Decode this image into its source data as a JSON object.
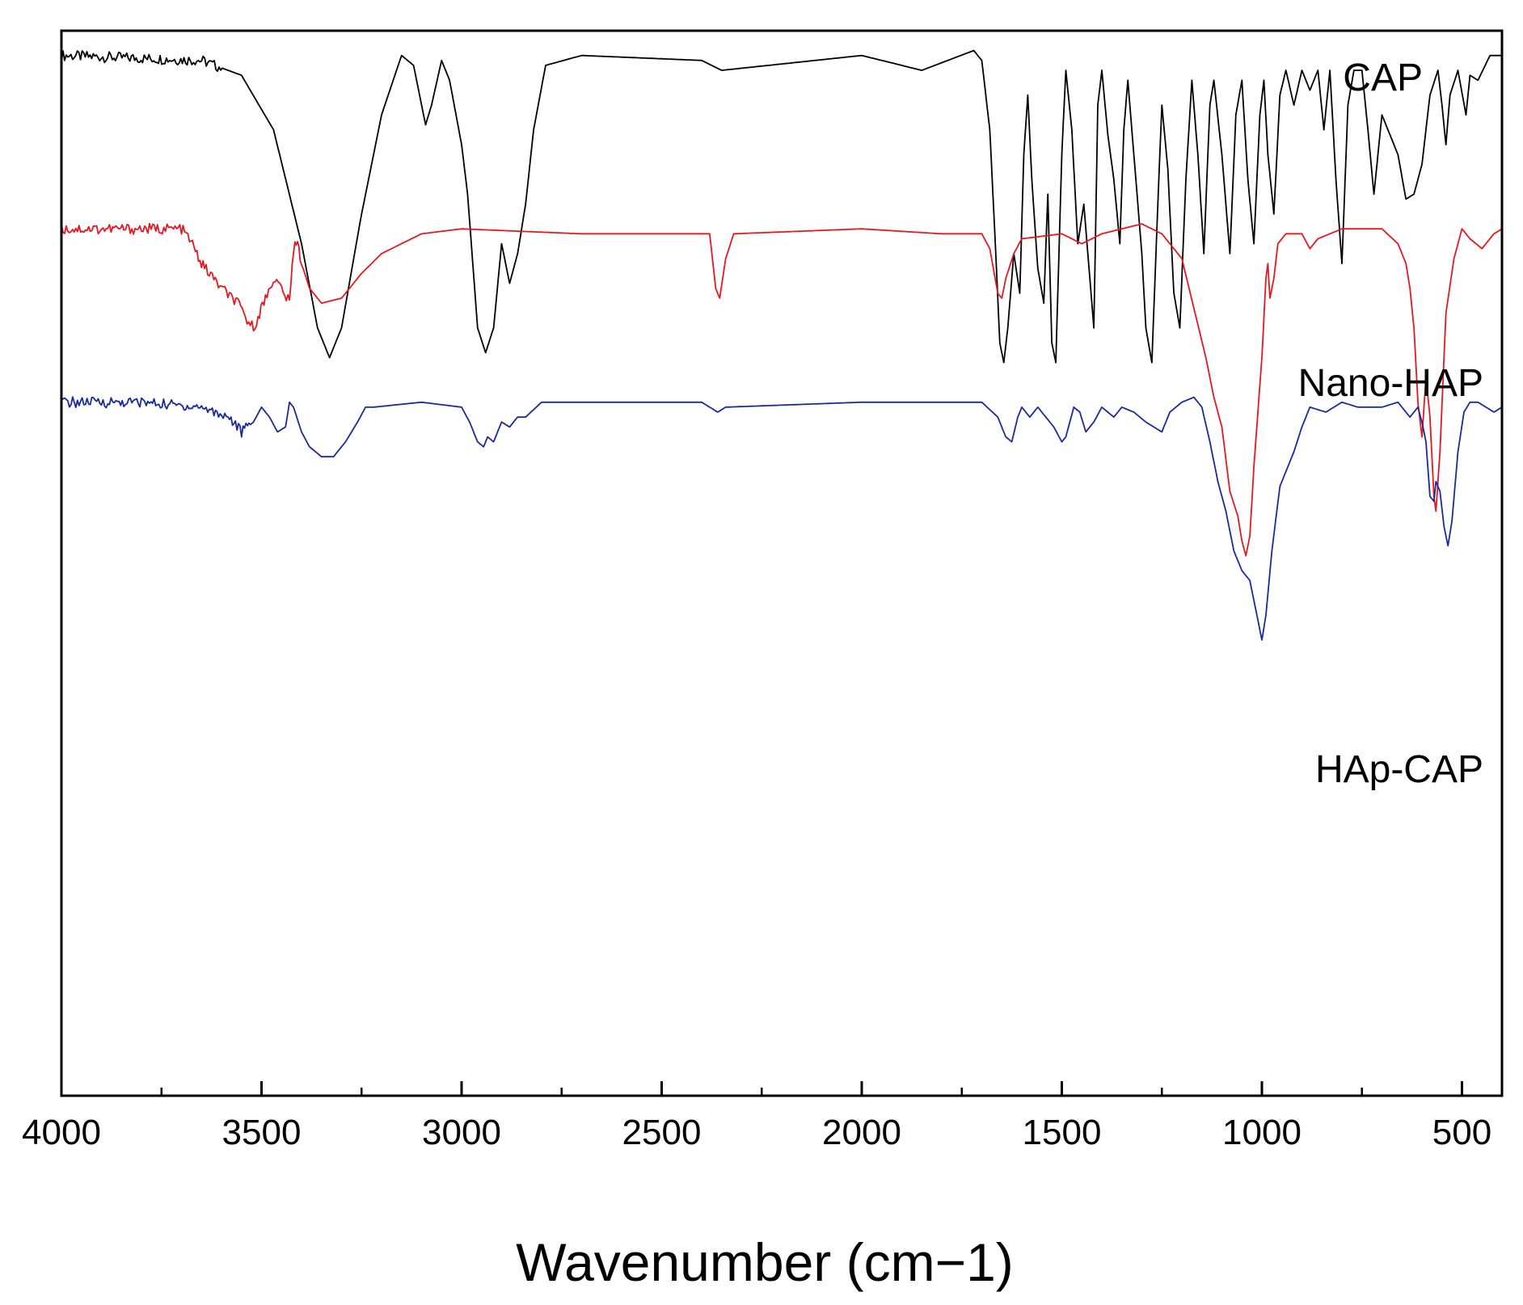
{
  "chart_data": {
    "type": "line",
    "title": "",
    "xlabel": "Wavenumber (cm−1)",
    "ylabel": "",
    "xlim": [
      4000,
      400
    ],
    "x_reversed": true,
    "y_axis_visible_ticks": false,
    "grid": false,
    "legend": "inline labels beside each trace",
    "xticks": [
      {
        "value": 4000,
        "label": "4000"
      },
      {
        "value": 3500,
        "label": "3500"
      },
      {
        "value": 3000,
        "label": "3000"
      },
      {
        "value": 2500,
        "label": "2500"
      },
      {
        "value": 2000,
        "label": "2000"
      },
      {
        "value": 1500,
        "label": "1500"
      },
      {
        "value": 1000,
        "label": "1000"
      },
      {
        "value": 500,
        "label": "500"
      }
    ],
    "minor_xticks": [
      3750,
      3250,
      2750,
      2250,
      1750,
      1250,
      750
    ],
    "series": [
      {
        "name": "CAP",
        "color": "#000000",
        "offset": 70,
        "noise_regions": [
          [
            4000,
            3600
          ]
        ],
        "points": [
          [
            4000,
            100
          ],
          [
            3650,
            99
          ],
          [
            3550,
            96
          ],
          [
            3470,
            85
          ],
          [
            3400,
            62
          ],
          [
            3360,
            45
          ],
          [
            3330,
            39
          ],
          [
            3300,
            45
          ],
          [
            3250,
            68
          ],
          [
            3200,
            88
          ],
          [
            3150,
            100
          ],
          [
            3120,
            98
          ],
          [
            3090,
            86
          ],
          [
            3075,
            90
          ],
          [
            3050,
            99
          ],
          [
            3030,
            95
          ],
          [
            3000,
            82
          ],
          [
            2985,
            72
          ],
          [
            2960,
            45
          ],
          [
            2940,
            40
          ],
          [
            2920,
            45
          ],
          [
            2900,
            62
          ],
          [
            2880,
            54
          ],
          [
            2860,
            60
          ],
          [
            2840,
            70
          ],
          [
            2820,
            85
          ],
          [
            2790,
            98
          ],
          [
            2700,
            100
          ],
          [
            2400,
            99
          ],
          [
            2350,
            97
          ],
          [
            2000,
            100
          ],
          [
            1850,
            97
          ],
          [
            1720,
            101
          ],
          [
            1700,
            99
          ],
          [
            1680,
            85
          ],
          [
            1665,
            60
          ],
          [
            1655,
            42
          ],
          [
            1645,
            38
          ],
          [
            1635,
            45
          ],
          [
            1620,
            60
          ],
          [
            1605,
            52
          ],
          [
            1595,
            80
          ],
          [
            1585,
            92
          ],
          [
            1575,
            75
          ],
          [
            1560,
            57
          ],
          [
            1545,
            50
          ],
          [
            1535,
            72
          ],
          [
            1525,
            42
          ],
          [
            1515,
            38
          ],
          [
            1500,
            80
          ],
          [
            1490,
            97
          ],
          [
            1475,
            85
          ],
          [
            1460,
            62
          ],
          [
            1445,
            70
          ],
          [
            1430,
            55
          ],
          [
            1420,
            45
          ],
          [
            1410,
            90
          ],
          [
            1400,
            97
          ],
          [
            1385,
            84
          ],
          [
            1370,
            75
          ],
          [
            1355,
            62
          ],
          [
            1345,
            85
          ],
          [
            1335,
            95
          ],
          [
            1320,
            80
          ],
          [
            1300,
            60
          ],
          [
            1290,
            45
          ],
          [
            1275,
            38
          ],
          [
            1260,
            70
          ],
          [
            1250,
            90
          ],
          [
            1235,
            77
          ],
          [
            1220,
            52
          ],
          [
            1205,
            45
          ],
          [
            1190,
            75
          ],
          [
            1175,
            95
          ],
          [
            1160,
            80
          ],
          [
            1145,
            60
          ],
          [
            1130,
            90
          ],
          [
            1120,
            95
          ],
          [
            1100,
            80
          ],
          [
            1080,
            60
          ],
          [
            1065,
            88
          ],
          [
            1050,
            95
          ],
          [
            1035,
            75
          ],
          [
            1020,
            62
          ],
          [
            1005,
            88
          ],
          [
            995,
            95
          ],
          [
            985,
            80
          ],
          [
            970,
            68
          ],
          [
            955,
            92
          ],
          [
            940,
            97
          ],
          [
            920,
            90
          ],
          [
            900,
            97
          ],
          [
            880,
            93
          ],
          [
            860,
            97
          ],
          [
            845,
            85
          ],
          [
            830,
            97
          ],
          [
            815,
            75
          ],
          [
            800,
            58
          ],
          [
            785,
            90
          ],
          [
            770,
            97
          ],
          [
            750,
            97
          ],
          [
            735,
            85
          ],
          [
            720,
            72
          ],
          [
            700,
            88
          ],
          [
            680,
            84
          ],
          [
            660,
            80
          ],
          [
            640,
            71
          ],
          [
            620,
            72
          ],
          [
            600,
            78
          ],
          [
            580,
            92
          ],
          [
            560,
            97
          ],
          [
            550,
            90
          ],
          [
            540,
            82
          ],
          [
            530,
            92
          ],
          [
            510,
            97
          ],
          [
            490,
            88
          ],
          [
            480,
            96
          ],
          [
            460,
            95
          ],
          [
            430,
            100
          ],
          [
            400,
            100
          ]
        ]
      },
      {
        "name": "Nano-HAP",
        "color": "#e5171f",
        "offset": 35,
        "noise_regions": [
          [
            4000,
            3400
          ]
        ],
        "points": [
          [
            4000,
            100
          ],
          [
            3900,
            100
          ],
          [
            3700,
            100
          ],
          [
            3680,
            98
          ],
          [
            3650,
            93
          ],
          [
            3600,
            88
          ],
          [
            3560,
            85
          ],
          [
            3540,
            82
          ],
          [
            3520,
            80
          ],
          [
            3490,
            86
          ],
          [
            3470,
            90
          ],
          [
            3450,
            88
          ],
          [
            3430,
            85
          ],
          [
            3420,
            96
          ],
          [
            3410,
            98
          ],
          [
            3400,
            93
          ],
          [
            3380,
            88
          ],
          [
            3350,
            85
          ],
          [
            3300,
            86
          ],
          [
            3250,
            91
          ],
          [
            3200,
            95
          ],
          [
            3100,
            99
          ],
          [
            3000,
            100
          ],
          [
            2700,
            99
          ],
          [
            2380,
            99
          ],
          [
            2365,
            88
          ],
          [
            2355,
            86
          ],
          [
            2340,
            94
          ],
          [
            2320,
            99
          ],
          [
            2000,
            100
          ],
          [
            1800,
            99
          ],
          [
            1700,
            99
          ],
          [
            1680,
            96
          ],
          [
            1660,
            87
          ],
          [
            1650,
            86
          ],
          [
            1640,
            90
          ],
          [
            1620,
            95
          ],
          [
            1600,
            98
          ],
          [
            1500,
            99
          ],
          [
            1450,
            97
          ],
          [
            1400,
            99
          ],
          [
            1300,
            101
          ],
          [
            1250,
            99
          ],
          [
            1200,
            94
          ],
          [
            1170,
            84
          ],
          [
            1140,
            74
          ],
          [
            1120,
            66
          ],
          [
            1100,
            60
          ],
          [
            1080,
            47
          ],
          [
            1060,
            42
          ],
          [
            1050,
            37
          ],
          [
            1040,
            34
          ],
          [
            1030,
            38
          ],
          [
            1020,
            52
          ],
          [
            1000,
            74
          ],
          [
            990,
            90
          ],
          [
            985,
            93
          ],
          [
            980,
            86
          ],
          [
            970,
            90
          ],
          [
            960,
            97
          ],
          [
            940,
            99
          ],
          [
            900,
            99
          ],
          [
            880,
            96
          ],
          [
            860,
            98
          ],
          [
            800,
            100
          ],
          [
            700,
            100
          ],
          [
            660,
            97
          ],
          [
            640,
            93
          ],
          [
            630,
            88
          ],
          [
            620,
            80
          ],
          [
            610,
            65
          ],
          [
            600,
            58
          ],
          [
            590,
            70
          ],
          [
            580,
            62
          ],
          [
            570,
            46
          ],
          [
            565,
            43
          ],
          [
            555,
            55
          ],
          [
            540,
            83
          ],
          [
            520,
            94
          ],
          [
            500,
            100
          ],
          [
            480,
            98
          ],
          [
            450,
            96
          ],
          [
            420,
            99
          ],
          [
            400,
            100
          ]
        ]
      },
      {
        "name": "HAp-CAP",
        "color": "#1a2a9c",
        "offset": 0,
        "noise_regions": [
          [
            4000,
            3530
          ]
        ],
        "points": [
          [
            4000,
            100
          ],
          [
            3800,
            100
          ],
          [
            3650,
            99
          ],
          [
            3580,
            97
          ],
          [
            3550,
            94
          ],
          [
            3520,
            96
          ],
          [
            3500,
            99
          ],
          [
            3480,
            97
          ],
          [
            3460,
            94
          ],
          [
            3440,
            95
          ],
          [
            3430,
            100
          ],
          [
            3420,
            99
          ],
          [
            3400,
            94
          ],
          [
            3380,
            91
          ],
          [
            3350,
            89
          ],
          [
            3320,
            89
          ],
          [
            3290,
            92
          ],
          [
            3260,
            96
          ],
          [
            3240,
            99
          ],
          [
            3220,
            99
          ],
          [
            3100,
            100
          ],
          [
            3000,
            99
          ],
          [
            2980,
            96
          ],
          [
            2960,
            92
          ],
          [
            2945,
            91
          ],
          [
            2935,
            93
          ],
          [
            2920,
            92
          ],
          [
            2900,
            96
          ],
          [
            2880,
            95
          ],
          [
            2860,
            97
          ],
          [
            2840,
            97
          ],
          [
            2800,
            100
          ],
          [
            2400,
            100
          ],
          [
            2360,
            98
          ],
          [
            2340,
            99
          ],
          [
            2000,
            100
          ],
          [
            1700,
            100
          ],
          [
            1660,
            97
          ],
          [
            1640,
            93
          ],
          [
            1625,
            92
          ],
          [
            1610,
            97
          ],
          [
            1600,
            99
          ],
          [
            1580,
            97
          ],
          [
            1560,
            99
          ],
          [
            1540,
            97
          ],
          [
            1520,
            95
          ],
          [
            1500,
            92
          ],
          [
            1490,
            93
          ],
          [
            1470,
            99
          ],
          [
            1455,
            98
          ],
          [
            1440,
            94
          ],
          [
            1420,
            96
          ],
          [
            1400,
            99
          ],
          [
            1370,
            97
          ],
          [
            1350,
            99
          ],
          [
            1320,
            98
          ],
          [
            1290,
            96
          ],
          [
            1270,
            95
          ],
          [
            1250,
            94
          ],
          [
            1230,
            98
          ],
          [
            1200,
            100
          ],
          [
            1170,
            101
          ],
          [
            1150,
            99
          ],
          [
            1130,
            92
          ],
          [
            1110,
            84
          ],
          [
            1090,
            78
          ],
          [
            1070,
            70
          ],
          [
            1050,
            66
          ],
          [
            1030,
            64
          ],
          [
            1010,
            56
          ],
          [
            1000,
            52
          ],
          [
            990,
            57
          ],
          [
            975,
            70
          ],
          [
            955,
            83
          ],
          [
            940,
            86
          ],
          [
            920,
            90
          ],
          [
            900,
            95
          ],
          [
            880,
            99
          ],
          [
            840,
            98
          ],
          [
            800,
            100
          ],
          [
            760,
            99
          ],
          [
            700,
            99
          ],
          [
            660,
            100
          ],
          [
            630,
            97
          ],
          [
            610,
            99
          ],
          [
            600,
            96
          ],
          [
            590,
            92
          ],
          [
            580,
            81
          ],
          [
            570,
            80
          ],
          [
            565,
            84
          ],
          [
            555,
            82
          ],
          [
            545,
            75
          ],
          [
            535,
            71
          ],
          [
            525,
            76
          ],
          [
            510,
            90
          ],
          [
            495,
            98
          ],
          [
            480,
            100
          ],
          [
            460,
            100
          ],
          [
            420,
            98
          ],
          [
            400,
            99
          ]
        ]
      }
    ]
  }
}
